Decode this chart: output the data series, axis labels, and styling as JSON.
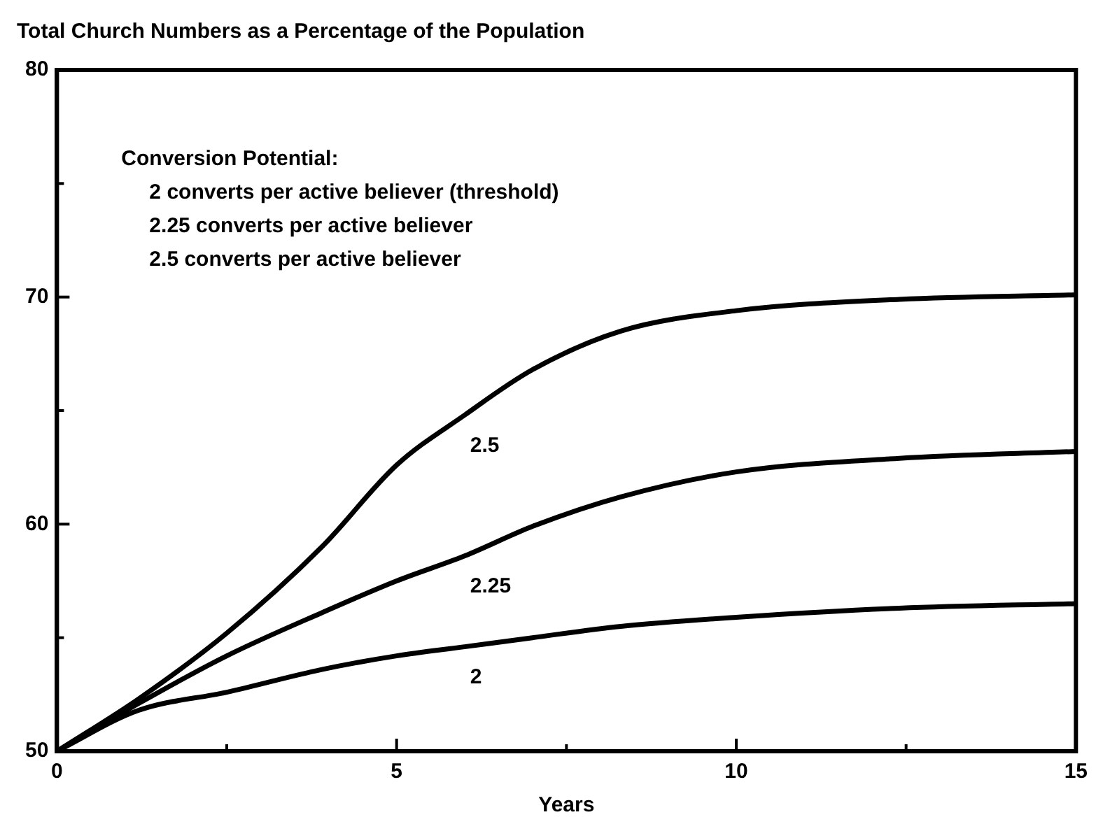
{
  "chart_data": {
    "type": "line",
    "title": "Total Church Numbers as a Percentage of the Population",
    "xlabel": "Years",
    "annotations": [
      "Conversion Potential:",
      "2 converts per active believer (threshold)",
      "2.25 converts per active believer",
      "2.5 converts per active believer"
    ],
    "x": [
      0,
      1.2,
      2.5,
      3.9,
      5,
      6,
      7,
      8.3,
      10,
      12.4,
      15
    ],
    "series": [
      {
        "name": "2",
        "color": "#000000",
        "values": [
          50,
          51.8,
          52.6,
          53.6,
          54.2,
          54.6,
          55.0,
          55.5,
          55.9,
          56.3,
          56.5
        ]
      },
      {
        "name": "2.25",
        "color": "#000000",
        "values": [
          50,
          52.1,
          54.2,
          56.1,
          57.5,
          58.6,
          59.9,
          61.2,
          62.3,
          62.9,
          63.2
        ]
      },
      {
        "name": "2.5",
        "color": "#000000",
        "values": [
          50,
          52.3,
          55.2,
          59.0,
          62.6,
          64.8,
          66.8,
          68.5,
          69.4,
          69.9,
          70.1
        ]
      }
    ],
    "xlim": [
      0,
      15
    ],
    "xticks": [
      0,
      {
        "value": 2.5,
        "label": null
      },
      5,
      {
        "value": 7.5,
        "label": null
      },
      10,
      {
        "value": 12.5,
        "label": null
      },
      15
    ],
    "ylim": [
      50,
      80
    ],
    "yticks": [
      50,
      {
        "value": 55,
        "label": null
      },
      60,
      {
        "value": 65,
        "label": null
      },
      70,
      {
        "value": 75,
        "label": null
      },
      80
    ],
    "grid": false,
    "legend": false,
    "marker": "none",
    "line_style": "solid"
  }
}
